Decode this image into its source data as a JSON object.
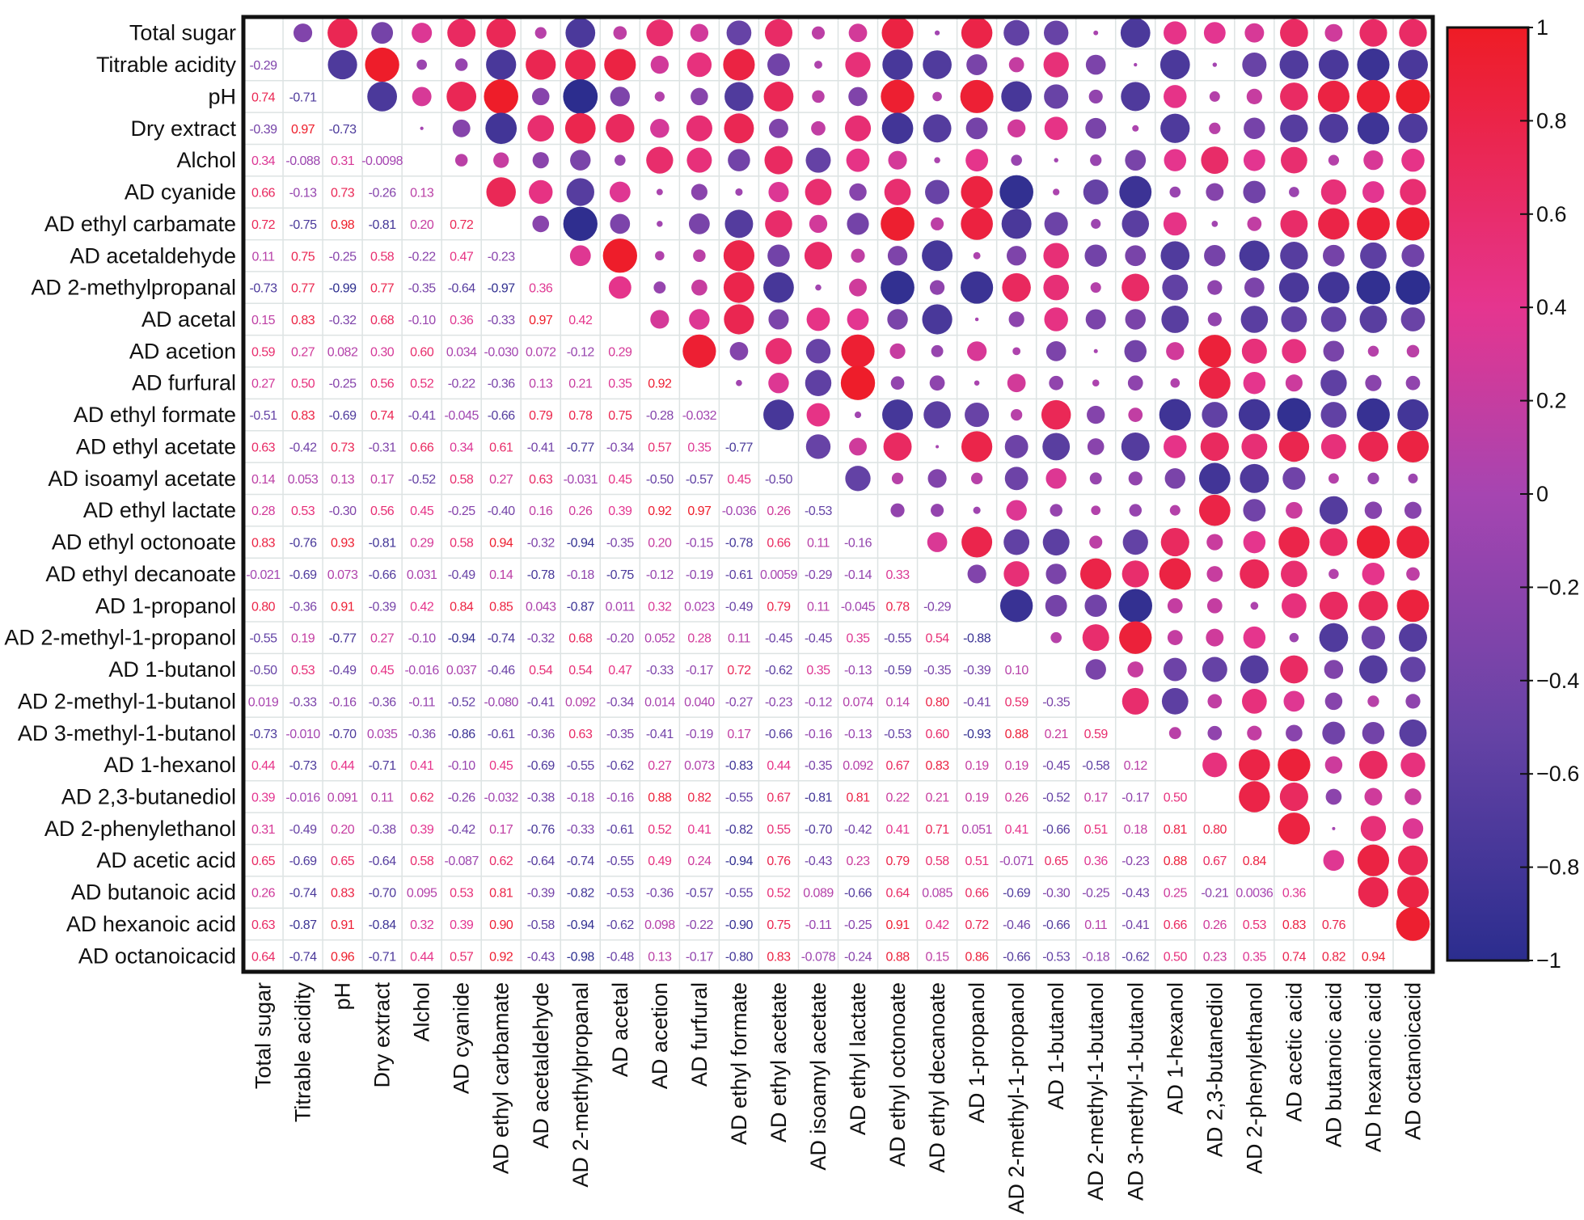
{
  "chart_data": {
    "type": "heatmap",
    "subtype": "correlation-matrix",
    "lower_triangle": "numbers",
    "upper_triangle": "circles",
    "grid": true,
    "legend": "right colorbar",
    "color_scale": {
      "min": -1,
      "max": 1,
      "stops": [
        {
          "value": -1,
          "color": "#2b2d8e"
        },
        {
          "value": -0.5,
          "color": "#6743a6"
        },
        {
          "value": 0,
          "color": "#a645b1"
        },
        {
          "value": 0.4,
          "color": "#e5358f"
        },
        {
          "value": 1,
          "color": "#ee1c25"
        }
      ]
    },
    "colorbar_ticks": [
      "1",
      "0.8",
      "0.6",
      "0.4",
      "0.2",
      "0",
      "−0.2",
      "−0.4",
      "−0.6",
      "−0.8",
      "−1"
    ],
    "labels": [
      "Total sugar",
      "Titrable acidity",
      "pH",
      "Dry extract",
      "Alchol",
      "AD cyanide",
      "AD ethyl carbamate",
      "AD acetaldehyde",
      "AD 2-methylpropanal",
      "AD acetal",
      "AD acetion",
      "AD furfural",
      "AD ethyl formate",
      "AD ethyl acetate",
      "AD isoamyl acetate",
      "AD ethyl lactate",
      "AD ethyl octonoate",
      "AD ethyl decanoate",
      "AD 1-propanol",
      "AD 2-methyl-1-propanol",
      "AD 1-butanol",
      "AD 2-methyl-1-butanol",
      "AD 3-methyl-1-butanol",
      "AD 1-hexanol",
      "AD 2,3-butanediol",
      "AD 2-phenylethanol",
      "AD acetic acid",
      "AD butanoic acid",
      "AD hexanoic acid",
      "AD octanoicacid"
    ],
    "values": [
      [],
      [
        "-0.29"
      ],
      [
        "0.74",
        "-0.71"
      ],
      [
        "-0.39",
        "0.97",
        "-0.73"
      ],
      [
        "0.34",
        "-0.088",
        "0.31",
        "-0.0098"
      ],
      [
        "0.66",
        "-0.13",
        "0.73",
        "-0.26",
        "0.13"
      ],
      [
        "0.72",
        "-0.75",
        "0.98",
        "-0.81",
        "0.20",
        "0.72"
      ],
      [
        "0.11",
        "0.75",
        "-0.25",
        "0.58",
        "-0.22",
        "0.47",
        "-0.23"
      ],
      [
        "-0.73",
        "0.77",
        "-0.99",
        "0.77",
        "-0.35",
        "-0.64",
        "-0.97",
        "0.36"
      ],
      [
        "0.15",
        "0.83",
        "-0.32",
        "0.68",
        "-0.10",
        "0.36",
        "-0.33",
        "0.97",
        "0.42"
      ],
      [
        "0.59",
        "0.27",
        "0.082",
        "0.30",
        "0.60",
        "0.034",
        "-0.030",
        "0.072",
        "-0.12",
        "0.29"
      ],
      [
        "0.27",
        "0.50",
        "-0.25",
        "0.56",
        "0.52",
        "-0.22",
        "-0.36",
        "0.13",
        "0.21",
        "0.35",
        "0.92"
      ],
      [
        "-0.51",
        "0.83",
        "-0.69",
        "0.74",
        "-0.41",
        "-0.045",
        "-0.66",
        "0.79",
        "0.78",
        "0.75",
        "-0.28",
        "-0.032"
      ],
      [
        "0.63",
        "-0.42",
        "0.73",
        "-0.31",
        "0.66",
        "0.34",
        "0.61",
        "-0.41",
        "-0.77",
        "-0.34",
        "0.57",
        "0.35",
        "-0.77"
      ],
      [
        "0.14",
        "0.053",
        "0.13",
        "0.17",
        "-0.52",
        "0.58",
        "0.27",
        "0.63",
        "-0.031",
        "0.45",
        "-0.50",
        "-0.57",
        "0.45",
        "-0.50"
      ],
      [
        "0.28",
        "0.53",
        "-0.30",
        "0.56",
        "0.45",
        "-0.25",
        "-0.40",
        "0.16",
        "0.26",
        "0.39",
        "0.92",
        "0.97",
        "-0.036",
        "0.26",
        "-0.53"
      ],
      [
        "0.83",
        "-0.76",
        "0.93",
        "-0.81",
        "0.29",
        "0.58",
        "0.94",
        "-0.32",
        "-0.94",
        "-0.35",
        "0.20",
        "-0.15",
        "-0.78",
        "0.66",
        "0.11",
        "-0.16"
      ],
      [
        "-0.021",
        "-0.69",
        "0.073",
        "-0.66",
        "0.031",
        "-0.49",
        "0.14",
        "-0.78",
        "-0.18",
        "-0.75",
        "-0.12",
        "-0.19",
        "-0.61",
        "0.0059",
        "-0.29",
        "-0.14",
        "0.33"
      ],
      [
        "0.80",
        "-0.36",
        "0.91",
        "-0.39",
        "0.42",
        "0.84",
        "0.85",
        "0.043",
        "-0.87",
        "0.011",
        "0.32",
        "0.023",
        "-0.49",
        "0.79",
        "0.11",
        "-0.045",
        "0.78",
        "-0.29"
      ],
      [
        "-0.55",
        "0.19",
        "-0.77",
        "0.27",
        "-0.10",
        "-0.94",
        "-0.74",
        "-0.32",
        "0.68",
        "-0.20",
        "0.052",
        "0.28",
        "0.11",
        "-0.45",
        "-0.45",
        "0.35",
        "-0.55",
        "0.54",
        "-0.88"
      ],
      [
        "-0.50",
        "0.53",
        "-0.49",
        "0.45",
        "-0.016",
        "0.037",
        "-0.46",
        "0.54",
        "0.54",
        "0.47",
        "-0.33",
        "-0.17",
        "0.72",
        "-0.62",
        "0.35",
        "-0.13",
        "-0.59",
        "-0.35",
        "-0.39",
        "0.10"
      ],
      [
        "0.019",
        "-0.33",
        "-0.16",
        "-0.36",
        "-0.11",
        "-0.52",
        "-0.080",
        "-0.41",
        "0.092",
        "-0.34",
        "0.014",
        "0.040",
        "-0.27",
        "-0.23",
        "-0.12",
        "0.074",
        "0.14",
        "0.80",
        "-0.41",
        "0.59",
        "-0.35"
      ],
      [
        "-0.73",
        "-0.010",
        "-0.70",
        "0.035",
        "-0.36",
        "-0.86",
        "-0.61",
        "-0.36",
        "0.63",
        "-0.35",
        "-0.41",
        "-0.19",
        "0.17",
        "-0.66",
        "-0.16",
        "-0.13",
        "-0.53",
        "0.60",
        "-0.93",
        "0.88",
        "0.21",
        "0.59"
      ],
      [
        "0.44",
        "-0.73",
        "0.44",
        "-0.71",
        "0.41",
        "-0.10",
        "0.45",
        "-0.69",
        "-0.55",
        "-0.62",
        "0.27",
        "0.073",
        "-0.83",
        "0.44",
        "-0.35",
        "0.092",
        "0.67",
        "0.83",
        "0.19",
        "0.19",
        "-0.45",
        "-0.58",
        "0.12"
      ],
      [
        "0.39",
        "-0.016",
        "0.091",
        "0.11",
        "0.62",
        "-0.26",
        "-0.032",
        "-0.38",
        "-0.18",
        "-0.16",
        "0.88",
        "0.82",
        "-0.55",
        "0.67",
        "-0.81",
        "0.81",
        "0.22",
        "0.21",
        "0.19",
        "0.26",
        "-0.52",
        "0.17",
        "-0.17",
        "0.50"
      ],
      [
        "0.31",
        "-0.49",
        "0.20",
        "-0.38",
        "0.39",
        "-0.42",
        "0.17",
        "-0.76",
        "-0.33",
        "-0.61",
        "0.52",
        "0.41",
        "-0.82",
        "0.55",
        "-0.70",
        "-0.42",
        "0.41",
        "0.71",
        "0.051",
        "0.41",
        "-0.66",
        "0.51",
        "0.18",
        "0.81",
        "0.80"
      ],
      [
        "0.65",
        "-0.69",
        "0.65",
        "-0.64",
        "0.58",
        "-0.087",
        "0.62",
        "-0.64",
        "-0.74",
        "-0.55",
        "0.49",
        "0.24",
        "-0.94",
        "0.76",
        "-0.43",
        "0.23",
        "0.79",
        "0.58",
        "0.51",
        "-0.071",
        "0.65",
        "0.36",
        "-0.23",
        "0.88",
        "0.67",
        "0.84"
      ],
      [
        "0.26",
        "-0.74",
        "0.83",
        "-0.70",
        "0.095",
        "0.53",
        "0.81",
        "-0.39",
        "-0.82",
        "-0.53",
        "-0.36",
        "-0.57",
        "-0.55",
        "0.52",
        "0.089",
        "-0.66",
        "0.64",
        "0.085",
        "0.66",
        "-0.69",
        "-0.30",
        "-0.25",
        "-0.43",
        "0.25",
        "-0.21",
        "0.0036",
        "0.36"
      ],
      [
        "0.63",
        "-0.87",
        "0.91",
        "-0.84",
        "0.32",
        "0.39",
        "0.90",
        "-0.58",
        "-0.94",
        "-0.62",
        "0.098",
        "-0.22",
        "-0.90",
        "0.75",
        "-0.11",
        "-0.25",
        "0.91",
        "0.42",
        "0.72",
        "-0.46",
        "-0.66",
        "0.11",
        "-0.41",
        "0.66",
        "0.26",
        "0.53",
        "0.83",
        "0.76"
      ],
      [
        "0.64",
        "-0.74",
        "0.96",
        "-0.71",
        "0.44",
        "0.57",
        "0.92",
        "-0.43",
        "-0.98",
        "-0.48",
        "0.13",
        "-0.17",
        "-0.80",
        "0.83",
        "-0.078",
        "-0.24",
        "0.88",
        "0.15",
        "0.86",
        "-0.66",
        "-0.53",
        "-0.18",
        "-0.62",
        "0.50",
        "0.23",
        "0.35",
        "0.74",
        "0.82",
        "0.94"
      ]
    ]
  }
}
